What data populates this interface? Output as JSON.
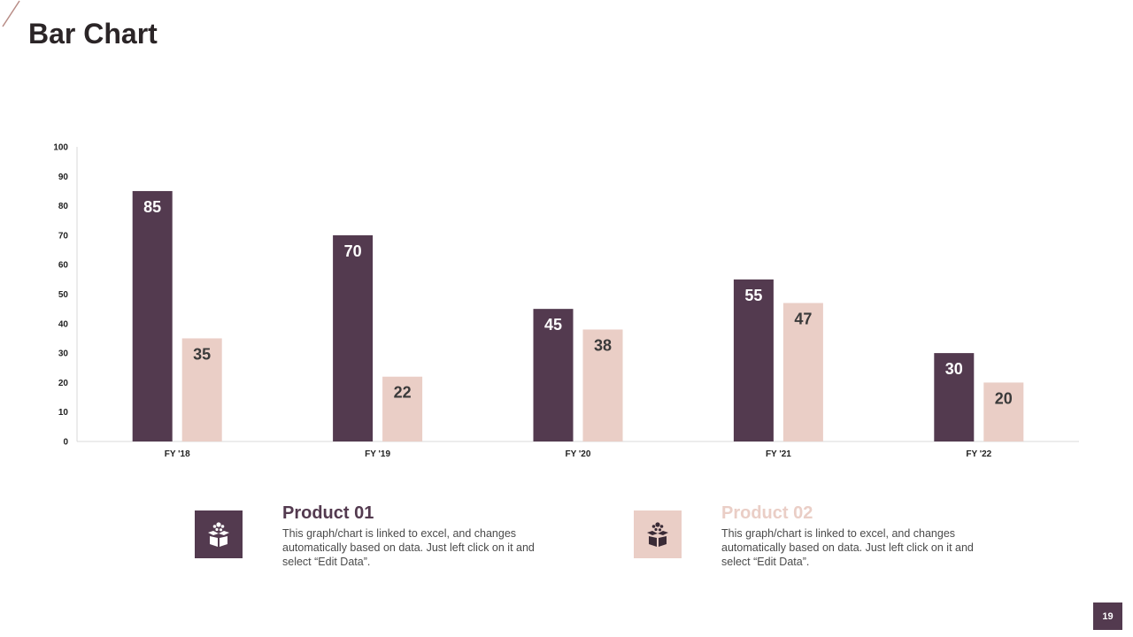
{
  "slide": {
    "title": "Bar Chart",
    "page_number": "19"
  },
  "colors": {
    "product1": "#533a4f",
    "product2": "#eacec6",
    "title_text": "#2b2527",
    "accent_line": "#b88c86"
  },
  "legend": [
    {
      "title": "Product 01",
      "description": "This graph/chart is linked to excel, and changes automatically based on data. Just left click on it and select “Edit Data”.",
      "icon": "gift-box-icon"
    },
    {
      "title": "Product 02",
      "description": "This graph/chart is linked to excel, and changes automatically based on data. Just left click on it and select “Edit Data”.",
      "icon": "gift-box-icon"
    }
  ],
  "chart_data": {
    "type": "bar",
    "categories": [
      "FY '18",
      "FY '19",
      "FY '20",
      "FY '21",
      "FY '22"
    ],
    "series": [
      {
        "name": "Product 01",
        "values": [
          85,
          70,
          45,
          55,
          30
        ]
      },
      {
        "name": "Product 02",
        "values": [
          35,
          22,
          38,
          47,
          20
        ]
      }
    ],
    "yticks": [
      0,
      10,
      20,
      30,
      40,
      50,
      60,
      70,
      80,
      90,
      100
    ],
    "ylim": [
      0,
      100
    ],
    "title": "",
    "xlabel": "",
    "ylabel": "",
    "grid": false,
    "data_labels": true
  }
}
